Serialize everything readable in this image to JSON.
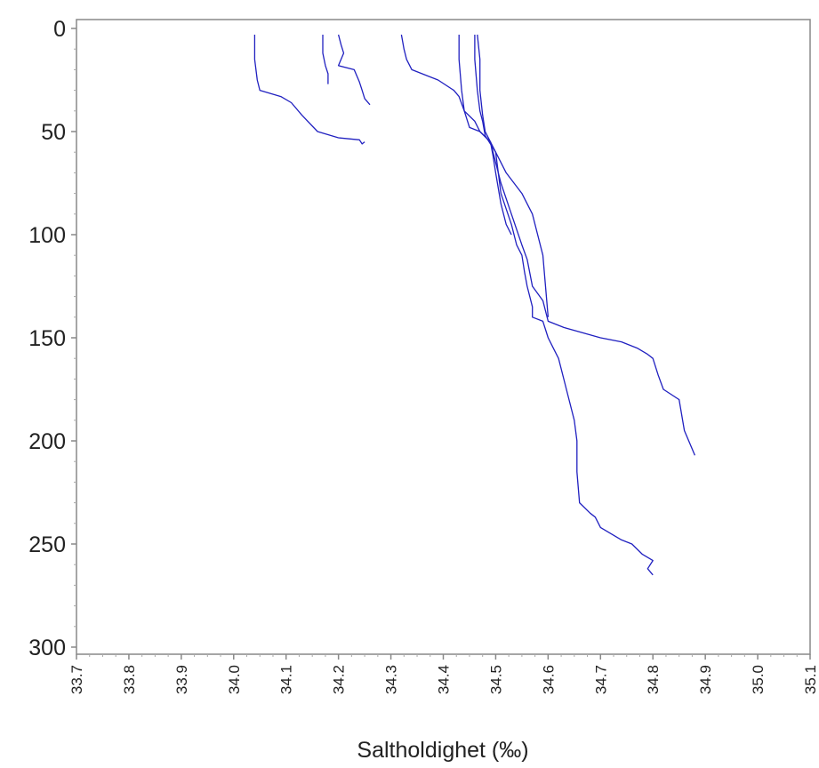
{
  "chart_data": {
    "type": "line",
    "title": "",
    "xlabel": "Saltholdighet (‰)",
    "ylabel": "",
    "xlim": [
      33.7,
      35.1
    ],
    "ylim": [
      0,
      300
    ],
    "y_reversed": true,
    "grid": false,
    "x_ticks": [
      "33.7",
      "33.8",
      "33.9",
      "34.0",
      "34.1",
      "34.2",
      "34.3",
      "34.4",
      "34.5",
      "34.6",
      "34.7",
      "34.8",
      "34.9",
      "35.0",
      "35.1"
    ],
    "y_ticks": [
      "0",
      "50",
      "100",
      "150",
      "200",
      "250",
      "300"
    ],
    "line_color": "#2020c0",
    "series": [
      {
        "x": [
          34.04,
          34.04,
          34.045,
          34.05,
          34.09,
          34.11,
          34.13,
          34.16,
          34.2,
          34.24,
          34.245,
          34.25
        ],
        "y": [
          3,
          15,
          25,
          30,
          33,
          36,
          42,
          50,
          53,
          54,
          56,
          55
        ]
      },
      {
        "x": [
          34.17,
          34.17,
          34.175,
          34.18,
          34.18
        ],
        "y": [
          3,
          12,
          18,
          22,
          27
        ]
      },
      {
        "x": [
          34.2,
          34.205,
          34.21,
          34.2,
          34.23,
          34.24,
          34.245,
          34.25,
          34.26
        ],
        "y": [
          3,
          8,
          12,
          18,
          20,
          26,
          30,
          34,
          37
        ]
      },
      {
        "x": [
          34.32,
          34.325,
          34.33,
          34.34,
          34.37,
          34.39,
          34.42,
          34.43,
          34.44,
          34.46,
          34.47,
          34.49,
          34.5,
          34.51,
          34.53,
          34.54,
          34.55,
          34.555,
          34.56,
          34.57,
          34.57,
          34.59,
          34.6,
          34.61,
          34.62,
          34.63,
          34.64,
          34.65,
          34.655,
          34.655,
          34.66,
          34.68,
          34.69,
          34.7,
          34.72,
          34.74,
          34.76,
          34.78,
          34.8,
          34.79,
          34.8
        ],
        "y": [
          3,
          10,
          15,
          20,
          23,
          25,
          30,
          33,
          40,
          45,
          50,
          55,
          60,
          80,
          95,
          105,
          110,
          118,
          125,
          135,
          140,
          142,
          150,
          155,
          160,
          170,
          180,
          190,
          200,
          215,
          230,
          235,
          237,
          242,
          245,
          248,
          250,
          255,
          258,
          262,
          265
        ]
      },
      {
        "x": [
          34.43,
          34.43,
          34.435,
          34.44,
          34.45,
          34.47,
          34.49,
          34.5,
          34.51,
          34.53,
          34.55,
          34.56,
          34.57,
          34.59,
          34.6,
          34.63,
          34.7,
          34.74,
          34.77,
          34.79,
          34.8,
          34.81,
          34.82,
          34.85,
          34.86,
          34.88
        ],
        "y": [
          3,
          15,
          30,
          40,
          48,
          50,
          55,
          65,
          75,
          90,
          105,
          112,
          125,
          132,
          142,
          145,
          150,
          152,
          155,
          158,
          160,
          168,
          175,
          180,
          195,
          207
        ]
      },
      {
        "x": [
          34.46,
          34.46,
          34.465,
          34.47,
          34.475,
          34.48,
          34.5,
          34.52,
          34.55,
          34.57,
          34.58,
          34.59,
          34.6
        ],
        "y": [
          3,
          15,
          30,
          40,
          45,
          52,
          60,
          70,
          80,
          90,
          100,
          110,
          140
        ]
      },
      {
        "x": [
          34.465,
          34.47,
          34.47,
          34.475,
          34.48,
          34.49,
          34.495,
          34.5,
          34.51,
          34.52,
          34.53
        ],
        "y": [
          3,
          15,
          30,
          42,
          50,
          55,
          62,
          70,
          85,
          95,
          100
        ]
      }
    ]
  }
}
